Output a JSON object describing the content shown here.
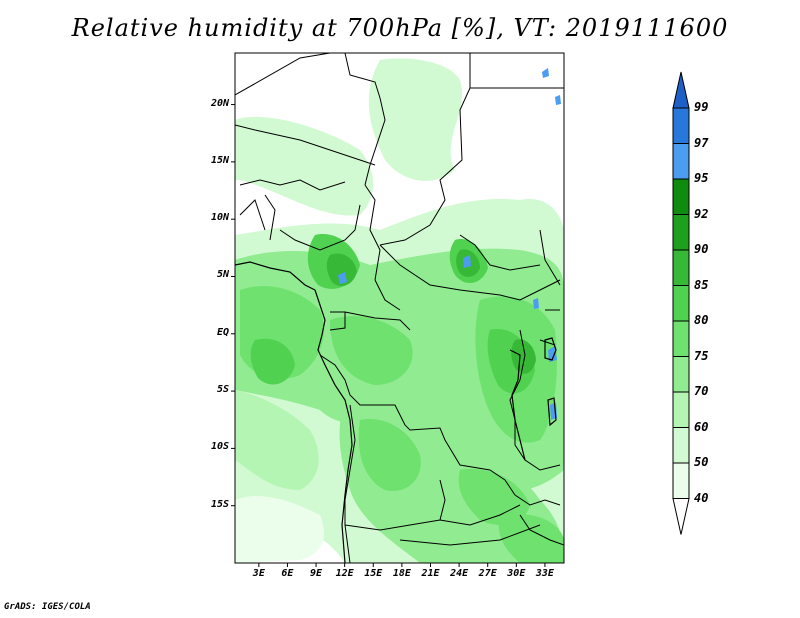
{
  "title": "Relative humidity at 700hPa [%], VT: 2019111600",
  "credit": "GrADS: IGES/COLA",
  "map": {
    "variable": "Relative humidity at 700hPa",
    "units": "%",
    "valid_time": "2019111600",
    "lon_range": [
      0.5,
      35
    ],
    "lat_range": [
      -20,
      24.5
    ],
    "lat_ticks": [
      {
        "value": 20,
        "label": "20N"
      },
      {
        "value": 15,
        "label": "15N"
      },
      {
        "value": 10,
        "label": "10N"
      },
      {
        "value": 5,
        "label": "5N"
      },
      {
        "value": 0,
        "label": "EQ"
      },
      {
        "value": -5,
        "label": "5S"
      },
      {
        "value": -10,
        "label": "10S"
      },
      {
        "value": -15,
        "label": "15S"
      }
    ],
    "lon_ticks": [
      {
        "value": 3,
        "label": "3E"
      },
      {
        "value": 6,
        "label": "6E"
      },
      {
        "value": 9,
        "label": "9E"
      },
      {
        "value": 12,
        "label": "12E"
      },
      {
        "value": 15,
        "label": "15E"
      },
      {
        "value": 18,
        "label": "18E"
      },
      {
        "value": 21,
        "label": "21E"
      },
      {
        "value": 24,
        "label": "24E"
      },
      {
        "value": 27,
        "label": "27E"
      },
      {
        "value": 30,
        "label": "30E"
      },
      {
        "value": 33,
        "label": "33E"
      }
    ]
  },
  "colorbar": {
    "levels": [
      {
        "label": "99",
        "color": "#1e5fc8"
      },
      {
        "label": "97",
        "color": "#2878dc"
      },
      {
        "label": "95",
        "color": "#4c9cf0"
      },
      {
        "label": "92",
        "color": "#0f8c0f"
      },
      {
        "label": "90",
        "color": "#1ea01e"
      },
      {
        "label": "85",
        "color": "#37b937"
      },
      {
        "label": "80",
        "color": "#50d250"
      },
      {
        "label": "75",
        "color": "#6ee16e"
      },
      {
        "label": "70",
        "color": "#91eb91"
      },
      {
        "label": "60",
        "color": "#b4f5b4"
      },
      {
        "label": "50",
        "color": "#d2fad2"
      },
      {
        "label": "40",
        "color": "#ebfdeb"
      }
    ],
    "bottom_color": "#ffffff",
    "top_color": "#1e5fc8"
  }
}
